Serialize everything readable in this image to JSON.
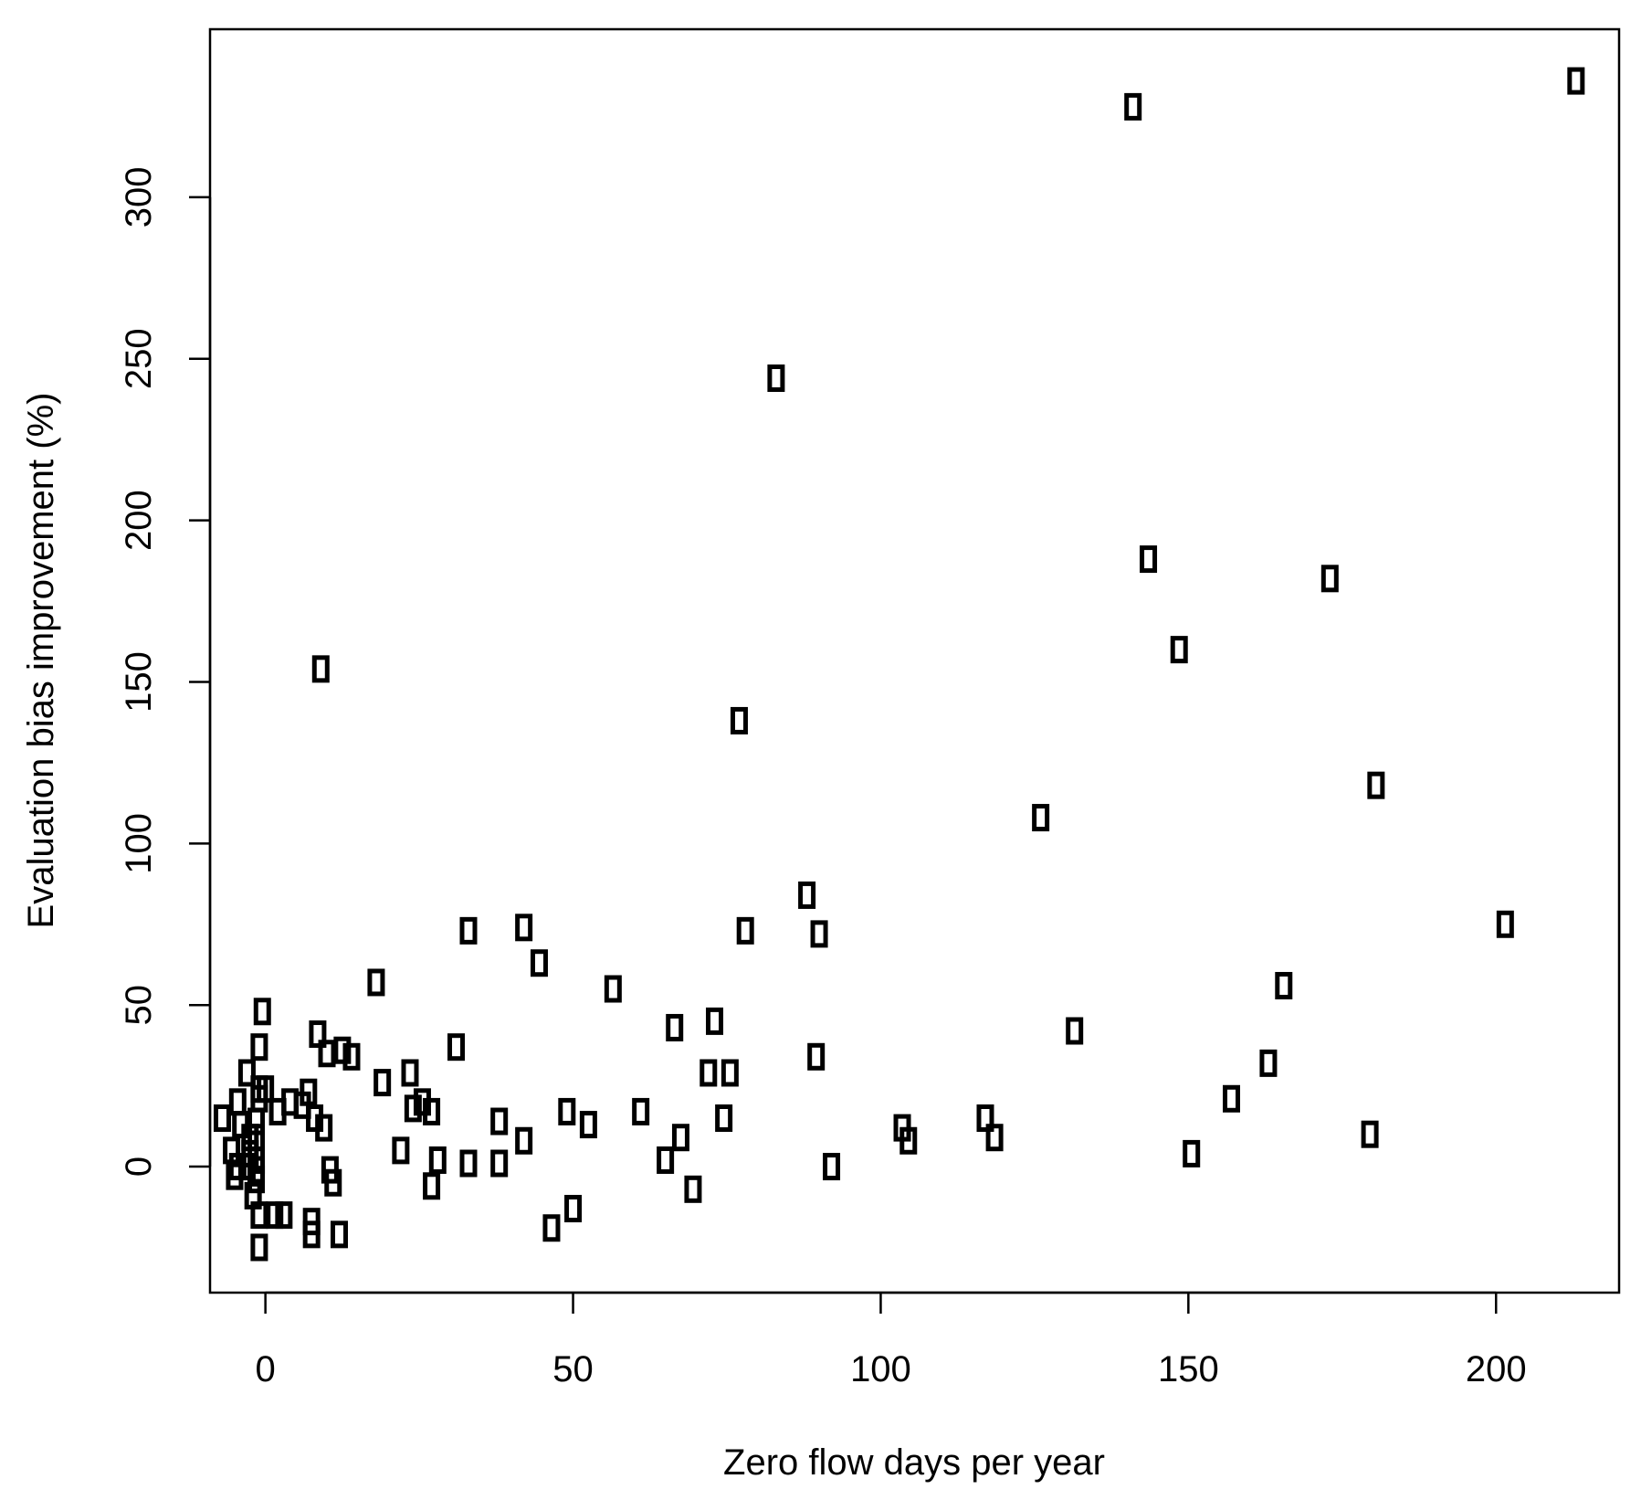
{
  "chart_data": {
    "type": "scatter",
    "title": "",
    "xlabel": "Zero flow days per year",
    "ylabel": "Evaluation bias improvement (%)",
    "xlim": [
      -9,
      220
    ],
    "ylim": [
      -39,
      352
    ],
    "xticks": [
      0,
      50,
      100,
      150,
      200
    ],
    "yticks": [
      0,
      50,
      100,
      150,
      200,
      250,
      300
    ],
    "xtick_labels": [
      "0",
      "50",
      "100",
      "150",
      "200"
    ],
    "ytick_labels": [
      "0",
      "50",
      "100",
      "150",
      "200",
      "250",
      "300"
    ],
    "grid": false,
    "legend": "none",
    "marker": "hollow-rectangle",
    "marker_color": "#000000",
    "points": [
      [
        213,
        336
      ],
      [
        141,
        328
      ],
      [
        83,
        244
      ],
      [
        143.5,
        188
      ],
      [
        173,
        182
      ],
      [
        148.5,
        160
      ],
      [
        9,
        154
      ],
      [
        77,
        138
      ],
      [
        180.5,
        118
      ],
      [
        126,
        108
      ],
      [
        88,
        84
      ],
      [
        201.5,
        75
      ],
      [
        33,
        73
      ],
      [
        42,
        74
      ],
      [
        78,
        73
      ],
      [
        90,
        72
      ],
      [
        44.5,
        63
      ],
      [
        18,
        57
      ],
      [
        56.5,
        55
      ],
      [
        165.5,
        56
      ],
      [
        -0.5,
        48
      ],
      [
        73,
        45
      ],
      [
        66.5,
        43
      ],
      [
        8.5,
        41
      ],
      [
        131.5,
        42
      ],
      [
        -1,
        37
      ],
      [
        31,
        37
      ],
      [
        10,
        35
      ],
      [
        12.5,
        36
      ],
      [
        14,
        34
      ],
      [
        89.5,
        34
      ],
      [
        163,
        32
      ],
      [
        -3,
        29
      ],
      [
        23.5,
        29
      ],
      [
        72,
        29
      ],
      [
        75.5,
        29
      ],
      [
        19,
        26
      ],
      [
        -1,
        24
      ],
      [
        0,
        24
      ],
      [
        7,
        23
      ],
      [
        -1,
        21
      ],
      [
        -4.5,
        20
      ],
      [
        4,
        20
      ],
      [
        6,
        19
      ],
      [
        25.5,
        20
      ],
      [
        157,
        21
      ],
      [
        2,
        17
      ],
      [
        24,
        18
      ],
      [
        27,
        17
      ],
      [
        49,
        17
      ],
      [
        61,
        17
      ],
      [
        -7,
        15
      ],
      [
        -1.5,
        14
      ],
      [
        8,
        15
      ],
      [
        38,
        14
      ],
      [
        52.5,
        13
      ],
      [
        74.5,
        15
      ],
      [
        117,
        15
      ],
      [
        -4,
        13
      ],
      [
        9.5,
        12
      ],
      [
        103.5,
        12
      ],
      [
        -2.5,
        9
      ],
      [
        -1.5,
        9
      ],
      [
        42,
        8
      ],
      [
        67.5,
        9
      ],
      [
        104.5,
        8
      ],
      [
        118.5,
        9
      ],
      [
        179.5,
        10
      ],
      [
        -5.5,
        5
      ],
      [
        -2.5,
        4
      ],
      [
        22,
        5
      ],
      [
        150.5,
        4
      ],
      [
        -1.5,
        2
      ],
      [
        -4.5,
        0
      ],
      [
        28,
        2
      ],
      [
        33,
        1
      ],
      [
        38,
        1
      ],
      [
        65,
        2
      ],
      [
        92,
        0
      ],
      [
        -3,
        0
      ],
      [
        -1.5,
        -1
      ],
      [
        10.5,
        -1
      ],
      [
        -5,
        -3
      ],
      [
        -1.5,
        -4
      ],
      [
        11,
        -5
      ],
      [
        27,
        -6
      ],
      [
        -2,
        -9
      ],
      [
        69.5,
        -7
      ],
      [
        50,
        -13
      ],
      [
        -1,
        -15
      ],
      [
        1.5,
        -15
      ],
      [
        3,
        -15
      ],
      [
        7.5,
        -17
      ],
      [
        46.5,
        -19
      ],
      [
        7.5,
        -21
      ],
      [
        12,
        -21
      ],
      [
        -1,
        -25
      ]
    ]
  }
}
